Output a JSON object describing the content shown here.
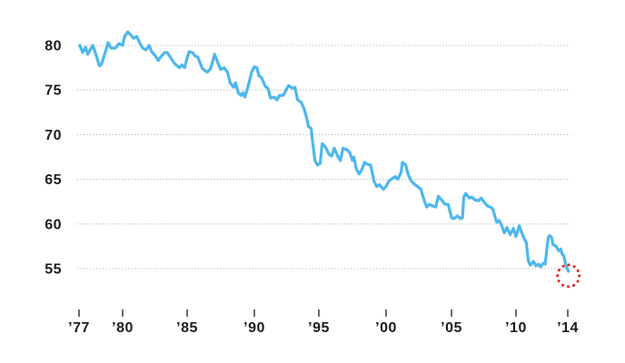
{
  "chart_data": {
    "type": "line",
    "title": "",
    "xlabel": "",
    "ylabel": "",
    "grid": "dotted horizontal gridlines",
    "legend": "none",
    "x_axis": {
      "range": [
        1976.8,
        2014.3
      ],
      "ticks": [
        {
          "label": "’77",
          "year": 1977
        },
        {
          "label": "’80",
          "year": 1980
        },
        {
          "label": "’85",
          "year": 1985
        },
        {
          "label": "’90",
          "year": 1990
        },
        {
          "label": "’95",
          "year": 1995
        },
        {
          "label": "’00",
          "year": 2000
        },
        {
          "label": "’05",
          "year": 2005
        },
        {
          "label": "’10",
          "year": 2010
        },
        {
          "label": "’14",
          "year": 2014
        }
      ]
    },
    "y_axis": {
      "range": [
        53.5,
        82.5
      ],
      "ticks": [
        80,
        75,
        70,
        65,
        60,
        55
      ],
      "tick_labels": [
        "80",
        "75",
        "70",
        "65",
        "60",
        "55"
      ]
    },
    "series": [
      {
        "name": "main-series",
        "color": "#4db7ec",
        "points": [
          [
            1977.05,
            80.0
          ],
          [
            1977.25,
            79.2
          ],
          [
            1977.45,
            79.8
          ],
          [
            1977.6,
            79.0
          ],
          [
            1977.95,
            80.0
          ],
          [
            1978.2,
            78.8
          ],
          [
            1978.4,
            77.7
          ],
          [
            1978.55,
            77.9
          ],
          [
            1978.8,
            79.2
          ],
          [
            1979.0,
            80.3
          ],
          [
            1979.2,
            79.7
          ],
          [
            1979.5,
            79.7
          ],
          [
            1979.75,
            80.2
          ],
          [
            1980.0,
            80.0
          ],
          [
            1980.15,
            81.0
          ],
          [
            1980.4,
            81.5
          ],
          [
            1980.6,
            81.2
          ],
          [
            1980.85,
            80.8
          ],
          [
            1981.1,
            81.0
          ],
          [
            1981.35,
            80.2
          ],
          [
            1981.55,
            79.7
          ],
          [
            1981.8,
            79.5
          ],
          [
            1982.05,
            80.0
          ],
          [
            1982.25,
            79.3
          ],
          [
            1982.55,
            78.8
          ],
          [
            1982.75,
            78.3
          ],
          [
            1982.95,
            78.7
          ],
          [
            1983.25,
            79.2
          ],
          [
            1983.45,
            79.2
          ],
          [
            1983.65,
            78.8
          ],
          [
            1983.95,
            78.1
          ],
          [
            1984.15,
            77.8
          ],
          [
            1984.4,
            77.5
          ],
          [
            1984.6,
            77.8
          ],
          [
            1984.8,
            77.5
          ],
          [
            1985.0,
            78.6
          ],
          [
            1985.15,
            79.3
          ],
          [
            1985.4,
            79.2
          ],
          [
            1985.6,
            78.8
          ],
          [
            1985.8,
            78.7
          ],
          [
            1986.1,
            77.5
          ],
          [
            1986.3,
            77.2
          ],
          [
            1986.5,
            77.0
          ],
          [
            1986.75,
            77.4
          ],
          [
            1987.05,
            79.0
          ],
          [
            1987.3,
            78.0
          ],
          [
            1987.5,
            77.3
          ],
          [
            1987.75,
            77.5
          ],
          [
            1988.0,
            77.0
          ],
          [
            1988.2,
            75.8
          ],
          [
            1988.45,
            75.3
          ],
          [
            1988.6,
            75.8
          ],
          [
            1988.8,
            74.7
          ],
          [
            1989.0,
            74.4
          ],
          [
            1989.15,
            74.7
          ],
          [
            1989.3,
            74.2
          ],
          [
            1989.55,
            75.5
          ],
          [
            1989.8,
            77.0
          ],
          [
            1990.0,
            77.6
          ],
          [
            1990.2,
            77.5
          ],
          [
            1990.35,
            76.6
          ],
          [
            1990.55,
            76.4
          ],
          [
            1990.85,
            75.4
          ],
          [
            1991.05,
            75.2
          ],
          [
            1991.25,
            74.1
          ],
          [
            1991.55,
            74.2
          ],
          [
            1991.75,
            73.9
          ],
          [
            1991.95,
            74.4
          ],
          [
            1992.25,
            74.4
          ],
          [
            1992.45,
            75.0
          ],
          [
            1992.65,
            75.5
          ],
          [
            1992.95,
            75.2
          ],
          [
            1993.15,
            75.3
          ],
          [
            1993.35,
            73.9
          ],
          [
            1993.65,
            73.6
          ],
          [
            1993.85,
            72.9
          ],
          [
            1994.05,
            71.9
          ],
          [
            1994.2,
            70.9
          ],
          [
            1994.4,
            70.7
          ],
          [
            1994.55,
            68.8
          ],
          [
            1994.7,
            67.1
          ],
          [
            1994.9,
            66.6
          ],
          [
            1995.1,
            66.8
          ],
          [
            1995.25,
            69.0
          ],
          [
            1995.5,
            68.6
          ],
          [
            1995.75,
            67.8
          ],
          [
            1995.95,
            67.6
          ],
          [
            1996.15,
            68.5
          ],
          [
            1996.4,
            67.6
          ],
          [
            1996.6,
            67.1
          ],
          [
            1996.8,
            68.5
          ],
          [
            1997.1,
            68.3
          ],
          [
            1997.3,
            68.0
          ],
          [
            1997.5,
            67.1
          ],
          [
            1997.6,
            67.5
          ],
          [
            1997.8,
            66.1
          ],
          [
            1998.0,
            65.6
          ],
          [
            1998.2,
            66.1
          ],
          [
            1998.4,
            66.9
          ],
          [
            1998.6,
            66.7
          ],
          [
            1998.85,
            66.6
          ],
          [
            1999.1,
            64.8
          ],
          [
            1999.3,
            64.2
          ],
          [
            1999.5,
            64.4
          ],
          [
            1999.8,
            63.9
          ],
          [
            2000.0,
            64.2
          ],
          [
            2000.2,
            64.8
          ],
          [
            2000.5,
            65.1
          ],
          [
            2000.7,
            65.3
          ],
          [
            2000.9,
            65.0
          ],
          [
            2001.15,
            65.8
          ],
          [
            2001.25,
            66.9
          ],
          [
            2001.5,
            66.6
          ],
          [
            2001.7,
            65.5
          ],
          [
            2001.95,
            64.8
          ],
          [
            2002.2,
            64.4
          ],
          [
            2002.4,
            64.2
          ],
          [
            2002.65,
            63.9
          ],
          [
            2002.9,
            62.7
          ],
          [
            2003.1,
            61.9
          ],
          [
            2003.3,
            62.2
          ],
          [
            2003.6,
            62.0
          ],
          [
            2003.8,
            61.9
          ],
          [
            2004.0,
            63.1
          ],
          [
            2004.3,
            62.6
          ],
          [
            2004.5,
            62.2
          ],
          [
            2004.75,
            62.2
          ],
          [
            2005.0,
            60.7
          ],
          [
            2005.2,
            60.6
          ],
          [
            2005.45,
            60.9
          ],
          [
            2005.7,
            60.6
          ],
          [
            2005.85,
            60.7
          ],
          [
            2005.95,
            63.0
          ],
          [
            2006.1,
            63.4
          ],
          [
            2006.4,
            62.9
          ],
          [
            2006.6,
            63.0
          ],
          [
            2006.8,
            62.7
          ],
          [
            2007.1,
            62.6
          ],
          [
            2007.3,
            62.9
          ],
          [
            2007.55,
            62.4
          ],
          [
            2007.8,
            62.0
          ],
          [
            2008.0,
            61.9
          ],
          [
            2008.2,
            61.7
          ],
          [
            2008.5,
            60.2
          ],
          [
            2008.7,
            60.4
          ],
          [
            2008.9,
            59.8
          ],
          [
            2009.1,
            59.0
          ],
          [
            2009.3,
            59.6
          ],
          [
            2009.55,
            58.8
          ],
          [
            2009.8,
            59.5
          ],
          [
            2010.0,
            58.6
          ],
          [
            2010.25,
            59.8
          ],
          [
            2010.4,
            59.2
          ],
          [
            2010.6,
            58.5
          ],
          [
            2010.8,
            57.9
          ],
          [
            2010.95,
            55.9
          ],
          [
            2011.1,
            55.4
          ],
          [
            2011.25,
            55.6
          ],
          [
            2011.35,
            55.8
          ],
          [
            2011.55,
            55.3
          ],
          [
            2011.75,
            55.5
          ],
          [
            2011.9,
            55.2
          ],
          [
            2012.1,
            55.6
          ],
          [
            2012.25,
            55.5
          ],
          [
            2012.4,
            57.4
          ],
          [
            2012.5,
            58.5
          ],
          [
            2012.6,
            58.7
          ],
          [
            2012.75,
            58.5
          ],
          [
            2012.85,
            57.7
          ],
          [
            2013.1,
            57.5
          ],
          [
            2013.3,
            57.0
          ],
          [
            2013.45,
            57.2
          ],
          [
            2013.55,
            56.7
          ],
          [
            2013.7,
            56.4
          ],
          [
            2013.8,
            55.7
          ],
          [
            2013.9,
            55.2
          ],
          [
            2014.05,
            54.7
          ]
        ]
      }
    ],
    "annotation": {
      "shape": "dotted-circle-highlight",
      "year": 2014.05,
      "value": 54.2,
      "color": "#ed2024"
    },
    "colors": {
      "line": "#4db7ec",
      "gridline": "#b3b3b3",
      "tick_mark": "#3a3a3a",
      "label_text": "#1c1c1c",
      "highlight": "#ed2024",
      "background": "#ffffff"
    }
  }
}
